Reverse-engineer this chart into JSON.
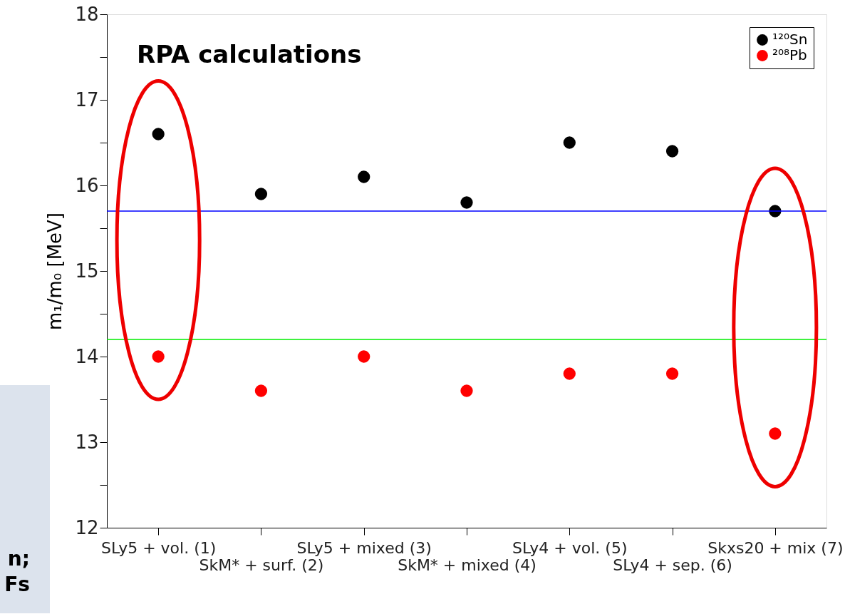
{
  "chart_data": {
    "type": "scatter",
    "title": "RPA calculations",
    "ylabel": "m₁/m₀ [MeV]",
    "categories": [
      "SLy5 + vol. (1)",
      "SkM* + surf. (2)",
      "SLy5 + mixed (3)",
      "SkM* + mixed (4)",
      "SLy4 + vol. (5)",
      "SLy4 + sep. (6)",
      "Skxs20 + mix (7)"
    ],
    "series": [
      {
        "name": "¹²⁰Sn",
        "color": "#000000",
        "values": [
          16.6,
          15.9,
          16.1,
          15.8,
          16.5,
          16.4,
          15.7
        ]
      },
      {
        "name": "²⁰⁸Pb",
        "color": "#ff0000",
        "values": [
          14.0,
          13.6,
          14.0,
          13.6,
          13.8,
          13.8,
          13.1
        ]
      }
    ],
    "ylim": [
      12,
      18
    ],
    "yticks": [
      12,
      {
        "value": 12.5,
        "label": null
      },
      13,
      {
        "value": 13.5,
        "label": null
      },
      14,
      {
        "value": 14.5,
        "label": null
      },
      15,
      {
        "value": 15.5,
        "label": null
      },
      16,
      {
        "value": 16.5,
        "label": null
      },
      17,
      {
        "value": 17.5,
        "label": null
      },
      18
    ],
    "ref_lines": [
      {
        "axis": "y",
        "value": 15.7,
        "color": "#0000ff"
      },
      {
        "axis": "y",
        "value": 14.2,
        "color": "#00ee00"
      }
    ],
    "annotations": [
      "n;",
      "Fs"
    ],
    "marker": "circle",
    "grid": false,
    "legend": "top right"
  }
}
